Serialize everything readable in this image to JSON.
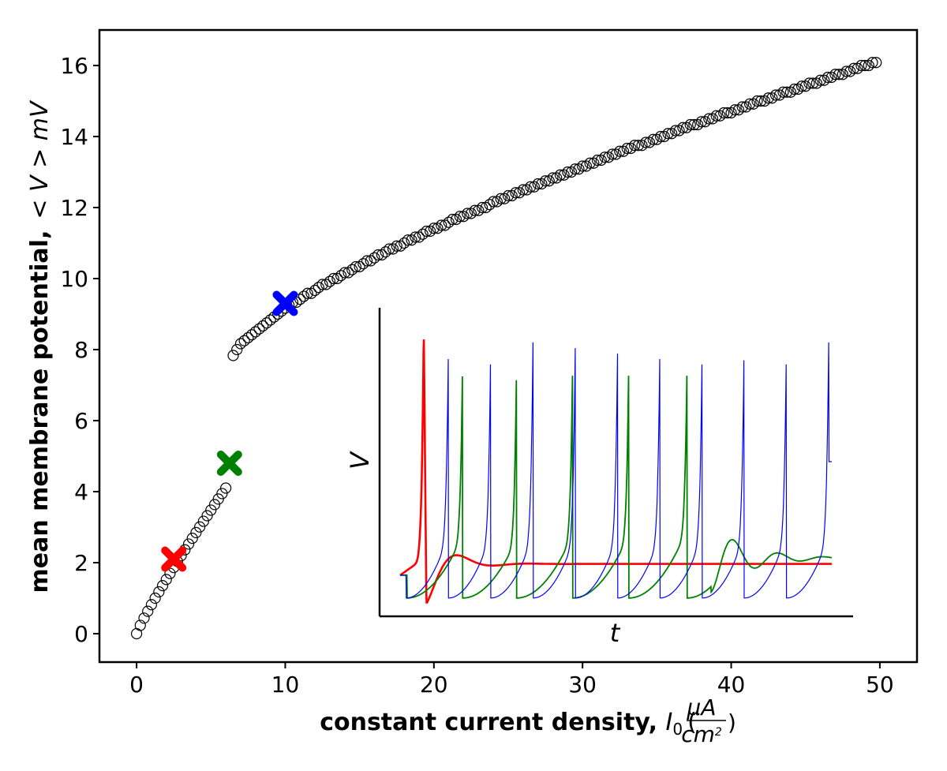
{
  "chart_data": {
    "type": "scatter",
    "title": "",
    "xlabel": "constant current density, I₀ (μA/cm²)",
    "xlabel_parts": {
      "main": "constant current density, ",
      "var": "I",
      "sub": "0",
      "unit_num": "μA",
      "unit_den": "cm",
      "unit_exp": "2"
    },
    "ylabel": "mean membrane potential,  < V >  mV",
    "ylabel_parts": {
      "main": "mean membrane potential,",
      "math": "< V >  mV"
    },
    "xlim": [
      -2.5,
      52.5
    ],
    "ylim": [
      -0.8,
      17.0
    ],
    "x_ticks": [
      0,
      10,
      20,
      30,
      40,
      50
    ],
    "y_ticks": [
      0,
      2,
      4,
      6,
      8,
      10,
      12,
      14,
      16
    ],
    "grid": false,
    "series": [
      {
        "marker": "open-circle",
        "color": "#000000",
        "segments": [
          {
            "x_start": 0,
            "x_end": 6.0,
            "step": 0.25,
            "y_start": 0.0,
            "y_end": 4.1,
            "shape": "power",
            "exponent": 0.9
          },
          {
            "x_start": 6.5,
            "x_end": 49.75,
            "step": 0.25,
            "y_start": 7.8,
            "y_end": 16.1,
            "shape": "power",
            "exponent": 0.72,
            "staircase": true
          }
        ]
      }
    ],
    "highlights": [
      {
        "x": 2.5,
        "y": 2.1,
        "color": "#ff0000",
        "marker": "x"
      },
      {
        "x": 6.25,
        "y": 4.8,
        "color": "#008000",
        "marker": "x"
      },
      {
        "x": 10.0,
        "y": 9.3,
        "color": "#0000ff",
        "marker": "x"
      }
    ],
    "inset": {
      "xlabel": "t",
      "ylabel": "V",
      "traces": [
        {
          "color": "#ff0000",
          "spike_times": [
            0.055
          ],
          "rest_level": 0.14,
          "damped": true
        },
        {
          "color": "#008000",
          "spike_times": [
            0.016,
            0.145,
            0.27,
            0.4,
            0.53,
            0.665
          ],
          "fading": true,
          "rest_level": 0.16
        },
        {
          "color": "#0000ff",
          "spike_times": [
            0.014,
            0.112,
            0.21,
            0.308,
            0.406,
            0.504,
            0.602,
            0.7,
            0.797,
            0.895,
            0.993
          ],
          "end_value": 0.5
        }
      ]
    }
  }
}
